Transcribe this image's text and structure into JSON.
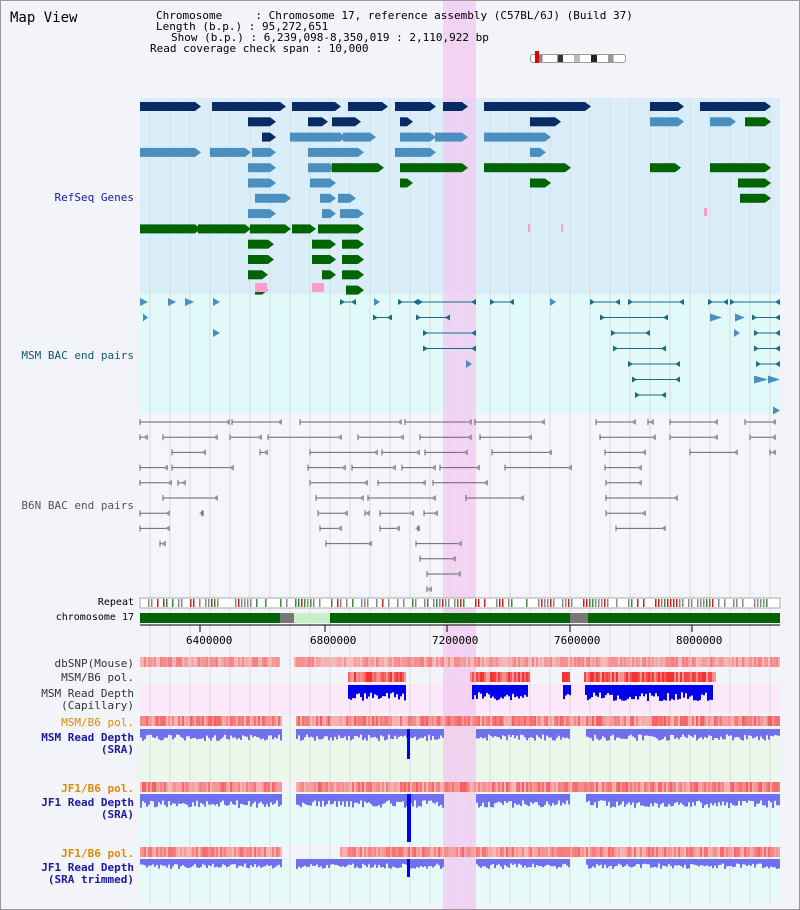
{
  "title": "Map View",
  "info": {
    "chromosome_line": "Chromosome     : Chromosome 17, reference assembly (C57BL/6J) (Build 37)",
    "length_line": "Length (b.p.) : 95,272,651",
    "show_line": "Show (b.p.) : 6,239,098-8,350,019 : 2,110,922 bp",
    "span_line": "Read coverage check span : 10,000"
  },
  "tracks": {
    "refseq": "RefSeq Genes",
    "msm_bac": "MSM BAC end pairs",
    "b6n_bac": "B6N BAC end pairs",
    "repeat": "Repeat",
    "chromosome": "chromosome 17",
    "dbsnp": "dbSNP(Mouse)",
    "msm_b6_pol_1": "MSM/B6 pol.",
    "msm_read_depth_cap": "MSM Read Depth",
    "capillary": "(Capillary)",
    "msm_b6_pol_2": "MSM/B6 pol.",
    "msm_read_depth_sra": "MSM Read Depth",
    "sra_1": "(SRA)",
    "jf1_b6_pol_1": "JF1/B6 pol.",
    "jf1_read_depth": "JF1 Read Depth",
    "sra_2": "(SRA)",
    "jf1_b6_pol_2": "JF1/B6 pol.",
    "jf1_read_depth_trim": "JF1 Read Depth",
    "sra_trimmed": "(SRA trimmed)"
  },
  "axis_ticks": [
    "6400000",
    "6800000",
    "7200000",
    "7600000",
    "8000000"
  ],
  "colors": {
    "refseq_dark": "#0a2a66",
    "refseq_mid": "#4a8fc0",
    "refseq_green": "#006400",
    "bac_line": "#1a6c8c",
    "b6n_line": "#666666",
    "highlight": "#f2c8f0",
    "depth_blue": "#0000ee",
    "depth_light": "#7070ee",
    "pol_red": "#ee3333"
  }
}
